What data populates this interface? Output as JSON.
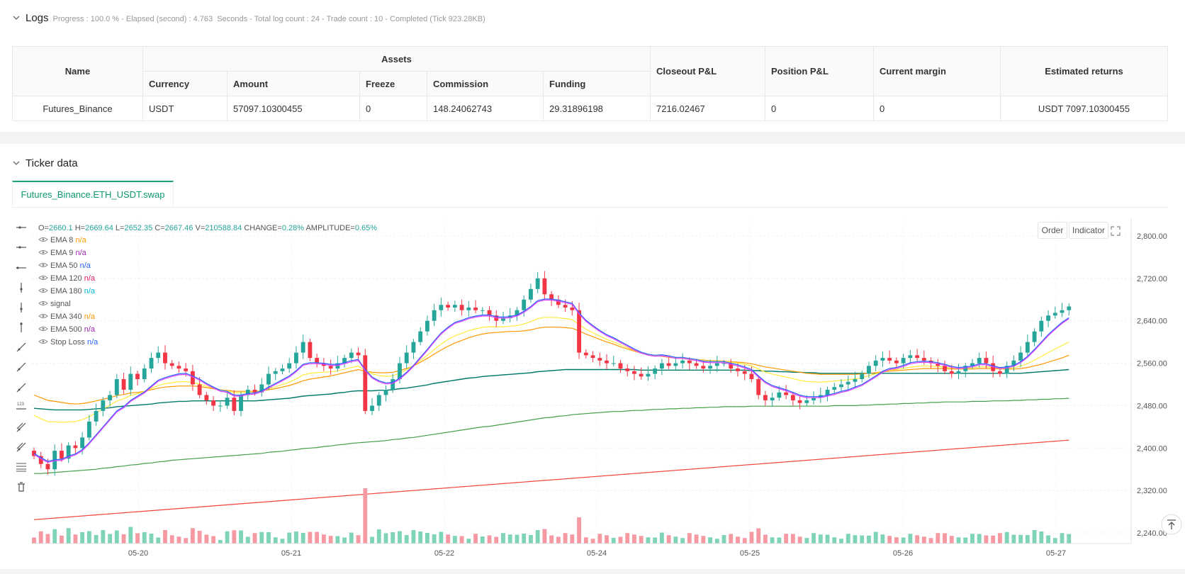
{
  "logs": {
    "title": "Logs",
    "meta": "Progress : 100.0 % - Elapsed (second) : 4.763  Seconds - Total log count : 24 - Trade count : 10 - Completed (Tick 923.28KB)",
    "table": {
      "name_header": "Name",
      "assets_header": "Assets",
      "sub_headers": [
        "Currency",
        "Amount",
        "Freeze",
        "Commission",
        "Funding"
      ],
      "right_headers": [
        "Closeout P&L",
        "Position P&L",
        "Current margin",
        "Estimated returns"
      ],
      "row": {
        "name": "Futures_Binance",
        "currency": "USDT",
        "amount": "57097.10300455",
        "freeze": "0",
        "commission": "148.24062743",
        "funding": "29.31896198",
        "closeout": "7216.02467",
        "position": "0",
        "margin": "0",
        "returns": "USDT 7097.10300455"
      }
    }
  },
  "ticker": {
    "title": "Ticker data",
    "tab": "Futures_Binance.ETH_USDT.swap",
    "buttons": {
      "order": "Order",
      "indicator": "Indicator"
    },
    "ohlc": {
      "o_label": "O=",
      "o": "2660.1",
      "h_label": "H=",
      "h": "2669.64",
      "l_label": "L=",
      "l": "2652.35",
      "c_label": "C=",
      "c": "2667.46",
      "v_label": "V=",
      "v": "210588.84",
      "chg_label": "CHANGE=",
      "chg": "0.28%",
      "amp_label": "AMPLITUDE=",
      "amp": "0.65%"
    },
    "legend": [
      {
        "name": "EMA 8",
        "value": "n/a",
        "color": "#ff9800"
      },
      {
        "name": "EMA 9",
        "value": "n/a",
        "color": "#9c27b0"
      },
      {
        "name": "EMA 50",
        "value": "n/a",
        "color": "#2962ff"
      },
      {
        "name": "EMA 120",
        "value": "n/a",
        "color": "#e91e63"
      },
      {
        "name": "EMA 180",
        "value": "n/a",
        "color": "#00bcd4"
      },
      {
        "name": "signal",
        "value": "",
        "color": "#333333"
      },
      {
        "name": "EMA 340",
        "value": "n/a",
        "color": "#ff9800"
      },
      {
        "name": "EMA 500",
        "value": "n/a",
        "color": "#9c27b0"
      },
      {
        "name": "Stop Loss",
        "value": "n/a",
        "color": "#2962ff"
      }
    ],
    "toolbar_icons": [
      "horizontal-ray-icon",
      "horizontal-line-icon",
      "horizontal-segment-icon",
      "vertical-line-icon",
      "vertical-ray-icon",
      "vertical-segment-icon",
      "trend-line-icon",
      "ray-line-icon",
      "extended-line-icon",
      "price-range-icon",
      "parallel-channel-icon",
      "pitchfork-icon",
      "fib-retracement-icon",
      "delete-icon"
    ]
  },
  "chart_data": {
    "type": "candlestick",
    "x_ticks": [
      "05-20",
      "05-21",
      "05-22",
      "05-24",
      "05-25",
      "05-26",
      "05-27"
    ],
    "y_ticks": [
      "2,800.00",
      "2,720.00",
      "2,640.00",
      "2,560.00",
      "2,480.00",
      "2,400.00",
      "2,320.00",
      "2,240.00"
    ],
    "ylim": [
      2220,
      2820
    ],
    "close": [
      2385,
      2370,
      2360,
      2395,
      2380,
      2405,
      2400,
      2420,
      2450,
      2470,
      2490,
      2500,
      2530,
      2510,
      2540,
      2530,
      2550,
      2570,
      2580,
      2560,
      2555,
      2550,
      2545,
      2520,
      2500,
      2490,
      2480,
      2480,
      2495,
      2470,
      2500,
      2510,
      2505,
      2520,
      2540,
      2545,
      2550,
      2560,
      2580,
      2600,
      2570,
      2560,
      2555,
      2550,
      2560,
      2570,
      2580,
      2575,
      2470,
      2480,
      2500,
      2510,
      2530,
      2560,
      2580,
      2600,
      2620,
      2640,
      2660,
      2670,
      2665,
      2670,
      2660,
      2665,
      2660,
      2660,
      2650,
      2640,
      2645,
      2650,
      2660,
      2680,
      2700,
      2720,
      2690,
      2680,
      2670,
      2665,
      2660,
      2580,
      2575,
      2570,
      2565,
      2560,
      2560,
      2550,
      2545,
      2540,
      2535,
      2540,
      2550,
      2560,
      2555,
      2560,
      2565,
      2560,
      2555,
      2550,
      2555,
      2560,
      2560,
      2550,
      2545,
      2540,
      2530,
      2500,
      2490,
      2495,
      2505,
      2500,
      2490,
      2485,
      2490,
      2495,
      2500,
      2510,
      2515,
      2520,
      2525,
      2530,
      2540,
      2555,
      2565,
      2570,
      2565,
      2560,
      2570,
      2575,
      2570,
      2565,
      2560,
      2555,
      2545,
      2540,
      2545,
      2555,
      2560,
      2570,
      2560,
      2545,
      2540,
      2555,
      2565,
      2580,
      2600,
      2620,
      2640,
      2650,
      2655,
      2660,
      2667
    ],
    "ema_fast": [
      2390,
      2382,
      2375,
      2378,
      2379,
      2385,
      2389,
      2397,
      2410,
      2425,
      2440,
      2455,
      2470,
      2478,
      2490,
      2498,
      2506,
      2517,
      2528,
      2533,
      2537,
      2540,
      2541,
      2536,
      2530,
      2522,
      2515,
      2509,
      2507,
      2500,
      2500,
      2503,
      2504,
      2508,
      2515,
      2522,
      2529,
      2536,
      2546,
      2558,
      2561,
      2561,
      2560,
      2558,
      2558,
      2561,
      2565,
      2567,
      2548,
      2534,
      2527,
      2523,
      2524,
      2532,
      2543,
      2556,
      2571,
      2586,
      2602,
      2617,
      2628,
      2637,
      2641,
      2646,
      2649,
      2651,
      2651,
      2648,
      2647,
      2648,
      2651,
      2658,
      2667,
      2678,
      2681,
      2681,
      2679,
      2676,
      2673,
      2655,
      2641,
      2631,
      2622,
      2614,
      2608,
      2601,
      2594,
      2587,
      2581,
      2577,
      2575,
      2576,
      2574,
      2571,
      2571,
      2569,
      2567,
      2564,
      2563,
      2563,
      2563,
      2560,
      2557,
      2553,
      2548,
      2536,
      2525,
      2518,
      2514,
      2510,
      2505,
      2500,
      2497,
      2497,
      2497,
      2500,
      2503,
      2507,
      2510,
      2515,
      2520,
      2528,
      2536,
      2545,
      2550,
      2552,
      2556,
      2561,
      2563,
      2564,
      2563,
      2561,
      2558,
      2554,
      2552,
      2553,
      2555,
      2559,
      2559,
      2555,
      2552,
      2553,
      2556,
      2563,
      2573,
      2586,
      2600,
      2614,
      2626,
      2637,
      2646
    ],
    "ema_mid": [
      2500,
      2495,
      2490,
      2488,
      2486,
      2484,
      2483,
      2484,
      2486,
      2489,
      2492,
      2495,
      2499,
      2501,
      2504,
      2505,
      2507,
      2510,
      2513,
      2515,
      2516,
      2517,
      2517,
      2517,
      2516,
      2514,
      2512,
      2510,
      2509,
      2507,
      2507,
      2507,
      2507,
      2508,
      2510,
      2512,
      2515,
      2518,
      2522,
      2527,
      2530,
      2532,
      2534,
      2536,
      2539,
      2542,
      2545,
      2548,
      2545,
      2543,
      2542,
      2542,
      2543,
      2546,
      2550,
      2555,
      2562,
      2569,
      2577,
      2585,
      2592,
      2598,
      2603,
      2608,
      2612,
      2615,
      2617,
      2618,
      2619,
      2620,
      2620,
      2621,
      2623,
      2626,
      2628,
      2628,
      2628,
      2627,
      2626,
      2621,
      2615,
      2610,
      2605,
      2600,
      2596,
      2591,
      2587,
      2583,
      2579,
      2576,
      2574,
      2573,
      2571,
      2570,
      2569,
      2568,
      2567,
      2566,
      2565,
      2565,
      2564,
      2563,
      2562,
      2561,
      2559,
      2556,
      2553,
      2551,
      2549,
      2547,
      2545,
      2543,
      2541,
      2540,
      2539,
      2539,
      2539,
      2539,
      2539,
      2539,
      2540,
      2541,
      2542,
      2544,
      2545,
      2546,
      2547,
      2548,
      2549,
      2550,
      2550,
      2550,
      2550,
      2549,
      2549,
      2549,
      2549,
      2550,
      2550,
      2550,
      2549,
      2549,
      2549,
      2550,
      2552,
      2555,
      2558,
      2562,
      2566,
      2570,
      2575
    ],
    "ema_slow": [
      2475,
      2474,
      2473,
      2472,
      2472,
      2472,
      2472,
      2472,
      2473,
      2474,
      2475,
      2476,
      2478,
      2479,
      2480,
      2481,
      2482,
      2483,
      2485,
      2486,
      2487,
      2488,
      2488,
      2489,
      2489,
      2489,
      2489,
      2489,
      2489,
      2489,
      2489,
      2489,
      2489,
      2490,
      2491,
      2492,
      2493,
      2494,
      2496,
      2498,
      2499,
      2500,
      2501,
      2502,
      2504,
      2505,
      2507,
      2508,
      2508,
      2508,
      2509,
      2509,
      2510,
      2512,
      2513,
      2515,
      2517,
      2519,
      2522,
      2524,
      2526,
      2528,
      2530,
      2532,
      2533,
      2535,
      2536,
      2537,
      2538,
      2539,
      2540,
      2541,
      2542,
      2544,
      2545,
      2546,
      2547,
      2548,
      2548,
      2548,
      2548,
      2548,
      2548,
      2548,
      2548,
      2548,
      2548,
      2548,
      2547,
      2547,
      2547,
      2547,
      2547,
      2547,
      2547,
      2547,
      2547,
      2547,
      2547,
      2547,
      2547,
      2547,
      2547,
      2547,
      2546,
      2546,
      2545,
      2545,
      2544,
      2544,
      2543,
      2543,
      2542,
      2542,
      2541,
      2541,
      2541,
      2541,
      2541,
      2541,
      2541,
      2541,
      2541,
      2541,
      2541,
      2541,
      2541,
      2541,
      2541,
      2541,
      2541,
      2541,
      2541,
      2541,
      2541,
      2541,
      2541,
      2541,
      2541,
      2541,
      2541,
      2541,
      2541,
      2541,
      2542,
      2543,
      2544,
      2545,
      2546,
      2547,
      2548
    ],
    "ema_500": [
      2352,
      2352,
      2353,
      2354,
      2355,
      2356,
      2357,
      2358,
      2359,
      2360,
      2362,
      2363,
      2365,
      2366,
      2368,
      2369,
      2371,
      2372,
      2374,
      2375,
      2377,
      2378,
      2379,
      2380,
      2381,
      2382,
      2383,
      2384,
      2385,
      2386,
      2387,
      2388,
      2389,
      2390,
      2392,
      2393,
      2394,
      2396,
      2397,
      2399,
      2400,
      2401,
      2403,
      2404,
      2406,
      2407,
      2409,
      2410,
      2411,
      2412,
      2413,
      2414,
      2416,
      2417,
      2419,
      2420,
      2422,
      2424,
      2426,
      2428,
      2430,
      2432,
      2434,
      2436,
      2438,
      2440,
      2441,
      2443,
      2445,
      2447,
      2449,
      2451,
      2453,
      2455,
      2457,
      2458,
      2460,
      2461,
      2463,
      2464,
      2465,
      2466,
      2467,
      2468,
      2469,
      2469,
      2470,
      2471,
      2471,
      2472,
      2473,
      2473,
      2474,
      2474,
      2475,
      2475,
      2476,
      2476,
      2477,
      2477,
      2478,
      2478,
      2478,
      2478,
      2479,
      2479,
      2479,
      2479,
      2479,
      2479,
      2479,
      2479,
      2479,
      2479,
      2479,
      2479,
      2480,
      2480,
      2480,
      2480,
      2481,
      2481,
      2482,
      2482,
      2483,
      2483,
      2484,
      2484,
      2485,
      2485,
      2486,
      2486,
      2487,
      2487,
      2487,
      2487,
      2488,
      2488,
      2488,
      2489,
      2489,
      2489,
      2490,
      2490,
      2491,
      2491,
      2492,
      2492,
      2493,
      2493,
      2494
    ],
    "stop_loss": [
      2265,
      2266,
      2267,
      2268,
      2269,
      2270,
      2271,
      2272,
      2273,
      2274,
      2275,
      2276,
      2277,
      2278,
      2279,
      2280,
      2281,
      2282,
      2283,
      2284,
      2285,
      2286,
      2287,
      2288,
      2289,
      2290,
      2291,
      2292,
      2293,
      2294,
      2295,
      2296,
      2297,
      2298,
      2299,
      2300,
      2301,
      2302,
      2303,
      2304,
      2305,
      2306,
      2307,
      2308,
      2309,
      2310,
      2311,
      2312,
      2313,
      2314,
      2315,
      2316,
      2317,
      2318,
      2319,
      2320,
      2321,
      2322,
      2323,
      2324,
      2325,
      2326,
      2327,
      2328,
      2329,
      2330,
      2331,
      2332,
      2333,
      2334,
      2335,
      2336,
      2337,
      2338,
      2339,
      2340,
      2341,
      2342,
      2343,
      2344,
      2345,
      2346,
      2347,
      2348,
      2349,
      2350,
      2351,
      2352,
      2353,
      2354,
      2355,
      2356,
      2357,
      2358,
      2359,
      2360,
      2361,
      2362,
      2363,
      2364,
      2365,
      2366,
      2367,
      2368,
      2369,
      2370,
      2371,
      2372,
      2373,
      2374,
      2375,
      2376,
      2377,
      2378,
      2379,
      2380,
      2381,
      2382,
      2383,
      2384,
      2385,
      2386,
      2387,
      2388,
      2389,
      2390,
      2391,
      2392,
      2393,
      2394,
      2395,
      2396,
      2397,
      2398,
      2399,
      2400,
      2401,
      2402,
      2403,
      2404,
      2405,
      2406,
      2407,
      2408,
      2409,
      2410,
      2411,
      2412,
      2413,
      2414,
      2415
    ],
    "colors": {
      "up": "#26a69a",
      "down": "#f23645",
      "ema_fast_a": "#2962ff",
      "ema_fast_b": "#e040fb",
      "ema_mid": "#ffeb3b",
      "ema_mid2": "#ff9800",
      "ema_slow": "#00796b",
      "ema_500": "#43a047",
      "stop_loss": "#f44336"
    }
  }
}
